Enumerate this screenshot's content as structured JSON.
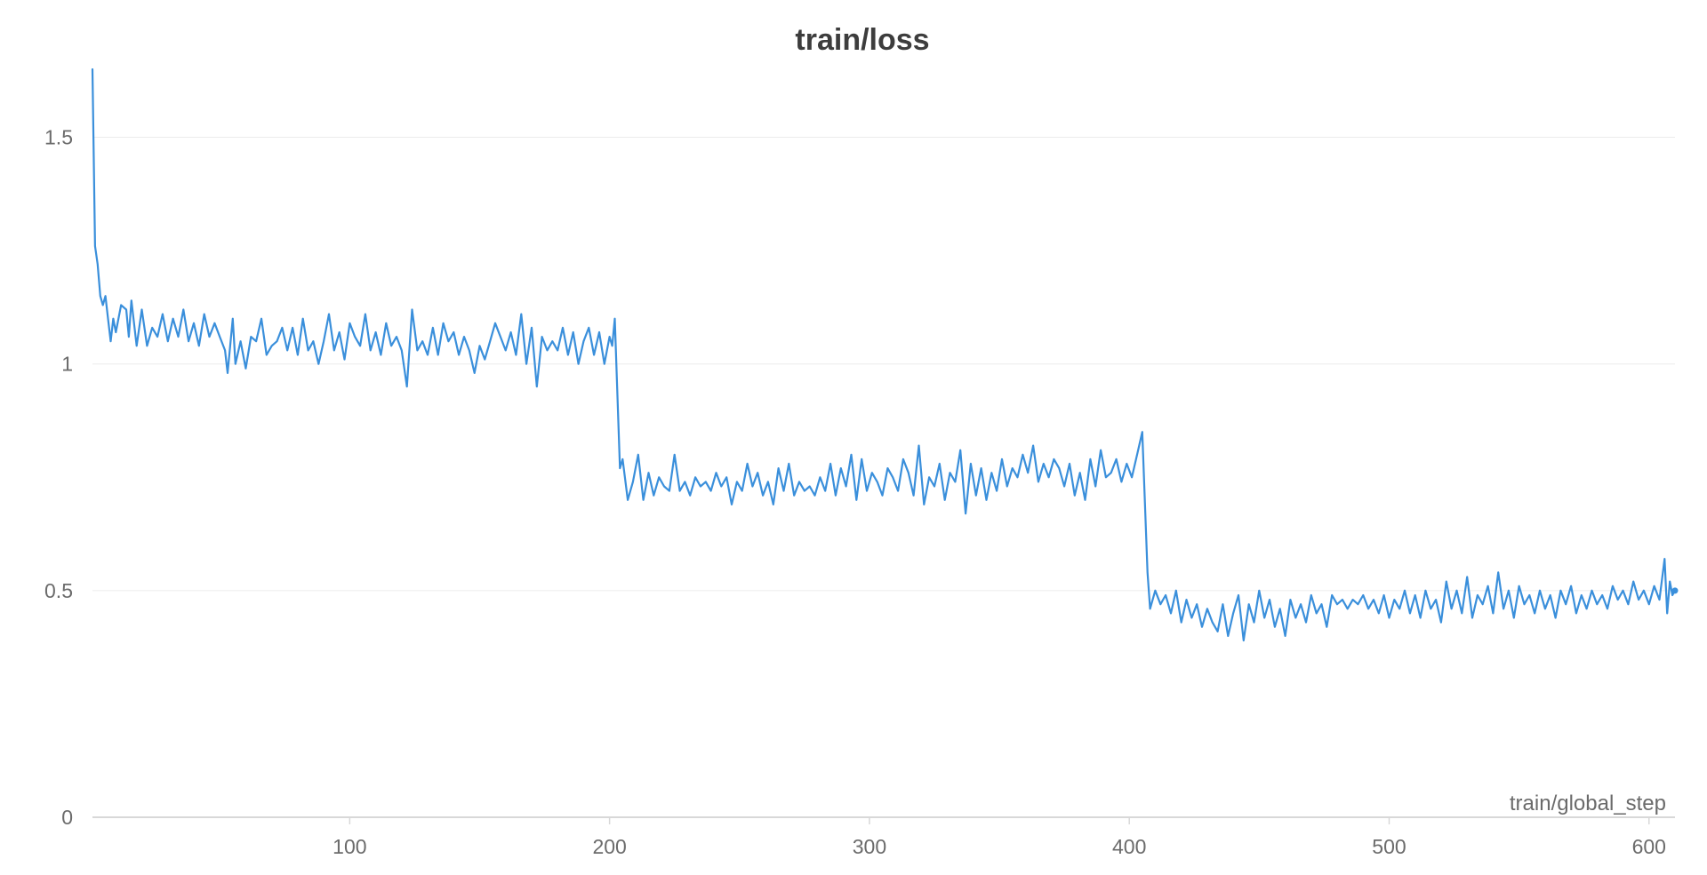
{
  "chart_data": {
    "type": "line",
    "title": "train/loss",
    "xlabel": "train/global_step",
    "ylabel": "",
    "xlim": [
      1,
      610
    ],
    "ylim": [
      0,
      1.65
    ],
    "xticks": [
      100,
      200,
      300,
      400,
      500,
      600
    ],
    "yticks": [
      0,
      0.5,
      1,
      1.5
    ],
    "ytick_labels": [
      "0",
      "0.5",
      "1",
      "1.5"
    ],
    "grid": true,
    "legend": "none",
    "color": "#3a8fdb",
    "series": [
      {
        "points": [
          [
            1,
            1.65
          ],
          [
            2,
            1.26
          ],
          [
            3,
            1.22
          ],
          [
            4,
            1.15
          ],
          [
            5,
            1.13
          ],
          [
            6,
            1.15
          ],
          [
            7,
            1.1
          ],
          [
            8,
            1.05
          ],
          [
            9,
            1.1
          ],
          [
            10,
            1.07
          ],
          [
            12,
            1.13
          ],
          [
            14,
            1.12
          ],
          [
            15,
            1.06
          ],
          [
            16,
            1.14
          ],
          [
            18,
            1.04
          ],
          [
            20,
            1.12
          ],
          [
            22,
            1.04
          ],
          [
            24,
            1.08
          ],
          [
            26,
            1.06
          ],
          [
            28,
            1.11
          ],
          [
            30,
            1.05
          ],
          [
            32,
            1.1
          ],
          [
            34,
            1.06
          ],
          [
            36,
            1.12
          ],
          [
            38,
            1.05
          ],
          [
            40,
            1.09
          ],
          [
            42,
            1.04
          ],
          [
            44,
            1.11
          ],
          [
            46,
            1.06
          ],
          [
            48,
            1.09
          ],
          [
            50,
            1.06
          ],
          [
            52,
            1.03
          ],
          [
            53,
            0.98
          ],
          [
            55,
            1.1
          ],
          [
            56,
            1.0
          ],
          [
            58,
            1.05
          ],
          [
            60,
            0.99
          ],
          [
            62,
            1.06
          ],
          [
            64,
            1.05
          ],
          [
            66,
            1.1
          ],
          [
            68,
            1.02
          ],
          [
            70,
            1.04
          ],
          [
            72,
            1.05
          ],
          [
            74,
            1.08
          ],
          [
            76,
            1.03
          ],
          [
            78,
            1.08
          ],
          [
            80,
            1.02
          ],
          [
            82,
            1.1
          ],
          [
            84,
            1.03
          ],
          [
            86,
            1.05
          ],
          [
            88,
            1.0
          ],
          [
            90,
            1.05
          ],
          [
            92,
            1.11
          ],
          [
            94,
            1.03
          ],
          [
            96,
            1.07
          ],
          [
            98,
            1.01
          ],
          [
            100,
            1.09
          ],
          [
            102,
            1.06
          ],
          [
            104,
            1.04
          ],
          [
            106,
            1.11
          ],
          [
            108,
            1.03
          ],
          [
            110,
            1.07
          ],
          [
            112,
            1.02
          ],
          [
            114,
            1.09
          ],
          [
            116,
            1.04
          ],
          [
            118,
            1.06
          ],
          [
            120,
            1.03
          ],
          [
            122,
            0.95
          ],
          [
            124,
            1.12
          ],
          [
            126,
            1.03
          ],
          [
            128,
            1.05
          ],
          [
            130,
            1.02
          ],
          [
            132,
            1.08
          ],
          [
            134,
            1.02
          ],
          [
            136,
            1.09
          ],
          [
            138,
            1.05
          ],
          [
            140,
            1.07
          ],
          [
            142,
            1.02
          ],
          [
            144,
            1.06
          ],
          [
            146,
            1.03
          ],
          [
            148,
            0.98
          ],
          [
            150,
            1.04
          ],
          [
            152,
            1.01
          ],
          [
            154,
            1.05
          ],
          [
            156,
            1.09
          ],
          [
            158,
            1.06
          ],
          [
            160,
            1.03
          ],
          [
            162,
            1.07
          ],
          [
            164,
            1.02
          ],
          [
            166,
            1.11
          ],
          [
            168,
            1.0
          ],
          [
            170,
            1.08
          ],
          [
            172,
            0.95
          ],
          [
            174,
            1.06
          ],
          [
            176,
            1.03
          ],
          [
            178,
            1.05
          ],
          [
            180,
            1.03
          ],
          [
            182,
            1.08
          ],
          [
            184,
            1.02
          ],
          [
            186,
            1.07
          ],
          [
            188,
            1.0
          ],
          [
            190,
            1.05
          ],
          [
            192,
            1.08
          ],
          [
            194,
            1.02
          ],
          [
            196,
            1.07
          ],
          [
            198,
            1.0
          ],
          [
            200,
            1.06
          ],
          [
            201,
            1.04
          ],
          [
            202,
            1.1
          ],
          [
            204,
            0.77
          ],
          [
            205,
            0.79
          ],
          [
            207,
            0.7
          ],
          [
            209,
            0.74
          ],
          [
            211,
            0.8
          ],
          [
            213,
            0.7
          ],
          [
            215,
            0.76
          ],
          [
            217,
            0.71
          ],
          [
            219,
            0.75
          ],
          [
            221,
            0.73
          ],
          [
            223,
            0.72
          ],
          [
            225,
            0.8
          ],
          [
            227,
            0.72
          ],
          [
            229,
            0.74
          ],
          [
            231,
            0.71
          ],
          [
            233,
            0.75
          ],
          [
            235,
            0.73
          ],
          [
            237,
            0.74
          ],
          [
            239,
            0.72
          ],
          [
            241,
            0.76
          ],
          [
            243,
            0.73
          ],
          [
            245,
            0.75
          ],
          [
            247,
            0.69
          ],
          [
            249,
            0.74
          ],
          [
            251,
            0.72
          ],
          [
            253,
            0.78
          ],
          [
            255,
            0.73
          ],
          [
            257,
            0.76
          ],
          [
            259,
            0.71
          ],
          [
            261,
            0.74
          ],
          [
            263,
            0.69
          ],
          [
            265,
            0.77
          ],
          [
            267,
            0.72
          ],
          [
            269,
            0.78
          ],
          [
            271,
            0.71
          ],
          [
            273,
            0.74
          ],
          [
            275,
            0.72
          ],
          [
            277,
            0.73
          ],
          [
            279,
            0.71
          ],
          [
            281,
            0.75
          ],
          [
            283,
            0.72
          ],
          [
            285,
            0.78
          ],
          [
            287,
            0.71
          ],
          [
            289,
            0.77
          ],
          [
            291,
            0.73
          ],
          [
            293,
            0.8
          ],
          [
            295,
            0.7
          ],
          [
            297,
            0.79
          ],
          [
            299,
            0.72
          ],
          [
            301,
            0.76
          ],
          [
            303,
            0.74
          ],
          [
            305,
            0.71
          ],
          [
            307,
            0.77
          ],
          [
            309,
            0.75
          ],
          [
            311,
            0.72
          ],
          [
            313,
            0.79
          ],
          [
            315,
            0.76
          ],
          [
            317,
            0.71
          ],
          [
            319,
            0.82
          ],
          [
            321,
            0.69
          ],
          [
            323,
            0.75
          ],
          [
            325,
            0.73
          ],
          [
            327,
            0.78
          ],
          [
            329,
            0.7
          ],
          [
            331,
            0.76
          ],
          [
            333,
            0.74
          ],
          [
            335,
            0.81
          ],
          [
            337,
            0.67
          ],
          [
            339,
            0.78
          ],
          [
            341,
            0.71
          ],
          [
            343,
            0.77
          ],
          [
            345,
            0.7
          ],
          [
            347,
            0.76
          ],
          [
            349,
            0.72
          ],
          [
            351,
            0.79
          ],
          [
            353,
            0.73
          ],
          [
            355,
            0.77
          ],
          [
            357,
            0.75
          ],
          [
            359,
            0.8
          ],
          [
            361,
            0.76
          ],
          [
            363,
            0.82
          ],
          [
            365,
            0.74
          ],
          [
            367,
            0.78
          ],
          [
            369,
            0.75
          ],
          [
            371,
            0.79
          ],
          [
            373,
            0.77
          ],
          [
            375,
            0.73
          ],
          [
            377,
            0.78
          ],
          [
            379,
            0.71
          ],
          [
            381,
            0.76
          ],
          [
            383,
            0.7
          ],
          [
            385,
            0.79
          ],
          [
            387,
            0.73
          ],
          [
            389,
            0.81
          ],
          [
            391,
            0.75
          ],
          [
            393,
            0.76
          ],
          [
            395,
            0.79
          ],
          [
            397,
            0.74
          ],
          [
            399,
            0.78
          ],
          [
            401,
            0.75
          ],
          [
            403,
            0.8
          ],
          [
            405,
            0.85
          ],
          [
            407,
            0.54
          ],
          [
            408,
            0.46
          ],
          [
            410,
            0.5
          ],
          [
            412,
            0.47
          ],
          [
            414,
            0.49
          ],
          [
            416,
            0.45
          ],
          [
            418,
            0.5
          ],
          [
            420,
            0.43
          ],
          [
            422,
            0.48
          ],
          [
            424,
            0.44
          ],
          [
            426,
            0.47
          ],
          [
            428,
            0.42
          ],
          [
            430,
            0.46
          ],
          [
            432,
            0.43
          ],
          [
            434,
            0.41
          ],
          [
            436,
            0.47
          ],
          [
            438,
            0.4
          ],
          [
            440,
            0.45
          ],
          [
            442,
            0.49
          ],
          [
            444,
            0.39
          ],
          [
            446,
            0.47
          ],
          [
            448,
            0.43
          ],
          [
            450,
            0.5
          ],
          [
            452,
            0.44
          ],
          [
            454,
            0.48
          ],
          [
            456,
            0.42
          ],
          [
            458,
            0.46
          ],
          [
            460,
            0.4
          ],
          [
            462,
            0.48
          ],
          [
            464,
            0.44
          ],
          [
            466,
            0.47
          ],
          [
            468,
            0.43
          ],
          [
            470,
            0.49
          ],
          [
            472,
            0.45
          ],
          [
            474,
            0.47
          ],
          [
            476,
            0.42
          ],
          [
            478,
            0.49
          ],
          [
            480,
            0.47
          ],
          [
            482,
            0.48
          ],
          [
            484,
            0.46
          ],
          [
            486,
            0.48
          ],
          [
            488,
            0.47
          ],
          [
            490,
            0.49
          ],
          [
            492,
            0.46
          ],
          [
            494,
            0.48
          ],
          [
            496,
            0.45
          ],
          [
            498,
            0.49
          ],
          [
            500,
            0.44
          ],
          [
            502,
            0.48
          ],
          [
            504,
            0.46
          ],
          [
            506,
            0.5
          ],
          [
            508,
            0.45
          ],
          [
            510,
            0.49
          ],
          [
            512,
            0.44
          ],
          [
            514,
            0.5
          ],
          [
            516,
            0.46
          ],
          [
            518,
            0.48
          ],
          [
            520,
            0.43
          ],
          [
            522,
            0.52
          ],
          [
            524,
            0.46
          ],
          [
            526,
            0.5
          ],
          [
            528,
            0.45
          ],
          [
            530,
            0.53
          ],
          [
            532,
            0.44
          ],
          [
            534,
            0.49
          ],
          [
            536,
            0.47
          ],
          [
            538,
            0.51
          ],
          [
            540,
            0.45
          ],
          [
            542,
            0.54
          ],
          [
            544,
            0.46
          ],
          [
            546,
            0.5
          ],
          [
            548,
            0.44
          ],
          [
            550,
            0.51
          ],
          [
            552,
            0.47
          ],
          [
            554,
            0.49
          ],
          [
            556,
            0.45
          ],
          [
            558,
            0.5
          ],
          [
            560,
            0.46
          ],
          [
            562,
            0.49
          ],
          [
            564,
            0.44
          ],
          [
            566,
            0.5
          ],
          [
            568,
            0.47
          ],
          [
            570,
            0.51
          ],
          [
            572,
            0.45
          ],
          [
            574,
            0.49
          ],
          [
            576,
            0.46
          ],
          [
            578,
            0.5
          ],
          [
            580,
            0.47
          ],
          [
            582,
            0.49
          ],
          [
            584,
            0.46
          ],
          [
            586,
            0.51
          ],
          [
            588,
            0.48
          ],
          [
            590,
            0.5
          ],
          [
            592,
            0.47
          ],
          [
            594,
            0.52
          ],
          [
            596,
            0.48
          ],
          [
            598,
            0.5
          ],
          [
            600,
            0.47
          ],
          [
            602,
            0.51
          ],
          [
            604,
            0.48
          ],
          [
            606,
            0.57
          ],
          [
            607,
            0.45
          ],
          [
            608,
            0.52
          ],
          [
            609,
            0.49
          ],
          [
            610,
            0.5
          ]
        ]
      }
    ]
  }
}
